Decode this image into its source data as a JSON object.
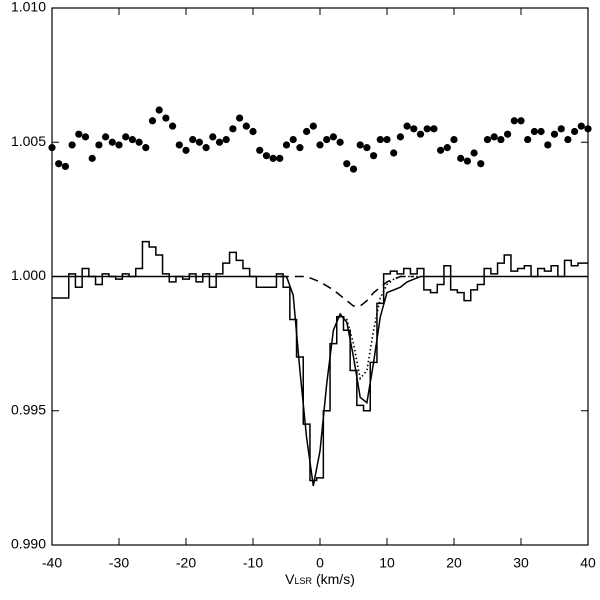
{
  "chart_data": {
    "type": "line",
    "x_label": {
      "main": "V",
      "sub": "LSR",
      "unit": "(km/s)"
    },
    "xlim": [
      -40,
      40
    ],
    "xticks": [
      -40,
      -30,
      -20,
      -10,
      0,
      10,
      20,
      30,
      40
    ],
    "ylim": [
      0.99,
      1.01
    ],
    "yticks": [
      {
        "value": 0.99,
        "label": "0.990"
      },
      {
        "value": 0.995,
        "label": "0.995"
      },
      {
        "value": 1.0,
        "label": "1.000"
      },
      {
        "value": 1.005,
        "label": "1.005"
      },
      {
        "value": 1.01,
        "label": "1.010"
      }
    ],
    "series": [
      {
        "style": "step",
        "color": "#000000",
        "x": [
          -40,
          -39,
          -38,
          -37,
          -36,
          -35,
          -34,
          -33,
          -32,
          -31,
          -30,
          -29,
          -28,
          -27,
          -26,
          -25,
          -24,
          -23,
          -22,
          -21,
          -20,
          -19,
          -18,
          -17,
          -16,
          -15,
          -14,
          -13,
          -12,
          -11,
          -10,
          -9,
          -8,
          -7,
          -6,
          -5,
          -4,
          -3,
          -2,
          -1,
          0,
          1,
          2,
          3,
          4,
          5,
          6,
          7,
          8,
          9,
          10,
          11,
          12,
          13,
          14,
          15,
          16,
          17,
          18,
          19,
          20,
          21,
          22,
          23,
          24,
          25,
          26,
          27,
          28,
          29,
          30,
          31,
          32,
          33,
          34,
          35,
          36,
          37,
          38,
          39,
          40
        ],
        "values": [
          0.9992,
          0.9992,
          0.9992,
          1.0001,
          0.9996,
          1.0003,
          1.0,
          0.9997,
          1.0001,
          1.0,
          0.9999,
          1.0001,
          1.0,
          1.0003,
          1.0013,
          1.0011,
          1.0008,
          1.0001,
          0.9998,
          1.0,
          0.9999,
          1.0001,
          0.9998,
          1.0001,
          0.9996,
          1.0001,
          1.0005,
          1.0009,
          1.0006,
          1.0003,
          1.0,
          0.9996,
          0.9996,
          0.9996,
          1.0001,
          0.9996,
          0.9984,
          0.997,
          0.9945,
          0.9924,
          0.9925,
          0.995,
          0.9975,
          0.9985,
          0.998,
          0.9965,
          0.9952,
          0.995,
          0.9968,
          0.999,
          1.0001,
          1.0002,
          1.0001,
          1.0003,
          1.0001,
          1.0003,
          0.9995,
          0.9994,
          0.9997,
          1.0004,
          0.9995,
          0.9994,
          0.9991,
          0.9995,
          0.9997,
          1.0003,
          1.0001,
          1.0005,
          1.0008,
          1.0002,
          1.0003,
          1.0004,
          1.0,
          1.0003,
          1.0002,
          1.0004,
          1.0,
          1.0006,
          1.0004,
          1.0005,
          1.0005
        ]
      },
      {
        "style": "solid",
        "color": "#000000",
        "x": [
          -40,
          -5,
          -4,
          -3,
          -2,
          -1,
          0,
          1,
          2,
          3,
          4,
          5,
          6,
          7,
          8,
          9,
          10,
          11,
          12,
          13,
          14,
          15,
          40
        ],
        "values": [
          1.0,
          1.0,
          0.9993,
          0.9965,
          0.994,
          0.9922,
          0.9935,
          0.996,
          0.998,
          0.9986,
          0.9983,
          0.997,
          0.9955,
          0.9953,
          0.9968,
          0.9985,
          0.9994,
          0.9995,
          0.9996,
          0.9998,
          0.9999,
          1.0,
          1.0
        ]
      },
      {
        "style": "dotted",
        "color": "#000000",
        "x": [
          3,
          4,
          5,
          6,
          7,
          8,
          9,
          10,
          11,
          12,
          13,
          14,
          15
        ],
        "values": [
          0.9986,
          0.9984,
          0.9975,
          0.9962,
          0.9965,
          0.998,
          0.9992,
          0.9997,
          0.9999,
          1.0,
          1.0,
          1.0,
          1.0
        ]
      },
      {
        "style": "dashed",
        "color": "#000000",
        "x": [
          -6,
          -2,
          0,
          2,
          4,
          5,
          6,
          7,
          8,
          10,
          12,
          14
        ],
        "values": [
          1.0,
          1.0,
          0.9998,
          0.9995,
          0.9991,
          0.9989,
          0.9989,
          0.9991,
          0.9994,
          0.9998,
          1.0,
          1.0
        ]
      },
      {
        "style": "dots",
        "color": "#000000",
        "x": [
          -40,
          -39,
          -38,
          -37,
          -36,
          -35,
          -34,
          -33,
          -32,
          -31,
          -30,
          -29,
          -28,
          -27,
          -26,
          -25,
          -24,
          -23,
          -22,
          -21,
          -20,
          -19,
          -18,
          -17,
          -16,
          -15,
          -14,
          -13,
          -12,
          -11,
          -10,
          -9,
          -8,
          -7,
          -6,
          -5,
          -4,
          -3,
          -2,
          -1,
          0,
          1,
          2,
          3,
          4,
          5,
          6,
          7,
          8,
          9,
          10,
          11,
          12,
          13,
          14,
          15,
          16,
          17,
          18,
          19,
          20,
          21,
          22,
          23,
          24,
          25,
          26,
          27,
          28,
          29,
          30,
          31,
          32,
          33,
          34,
          35,
          36,
          37,
          38,
          39,
          40
        ],
        "values": [
          1.0048,
          1.0042,
          1.0041,
          1.0049,
          1.0053,
          1.0052,
          1.0044,
          1.0049,
          1.0052,
          1.005,
          1.0049,
          1.0052,
          1.0051,
          1.005,
          1.0048,
          1.0058,
          1.0062,
          1.0059,
          1.0056,
          1.0049,
          1.0047,
          1.0051,
          1.005,
          1.0048,
          1.0052,
          1.005,
          1.0051,
          1.0055,
          1.0059,
          1.0056,
          1.0054,
          1.0047,
          1.0045,
          1.0044,
          1.0044,
          1.0049,
          1.0051,
          1.0048,
          1.0054,
          1.0056,
          1.0049,
          1.0051,
          1.0052,
          1.005,
          1.0042,
          1.004,
          1.0049,
          1.0048,
          1.0045,
          1.0051,
          1.0051,
          1.0046,
          1.0052,
          1.0056,
          1.0055,
          1.0053,
          1.0055,
          1.0055,
          1.0047,
          1.0048,
          1.0051,
          1.0044,
          1.0043,
          1.0046,
          1.0042,
          1.0051,
          1.0052,
          1.0051,
          1.0053,
          1.0058,
          1.0058,
          1.0051,
          1.0054,
          1.0054,
          1.0049,
          1.0053,
          1.0055,
          1.0051,
          1.0054,
          1.0056,
          1.0055
        ]
      }
    ]
  }
}
